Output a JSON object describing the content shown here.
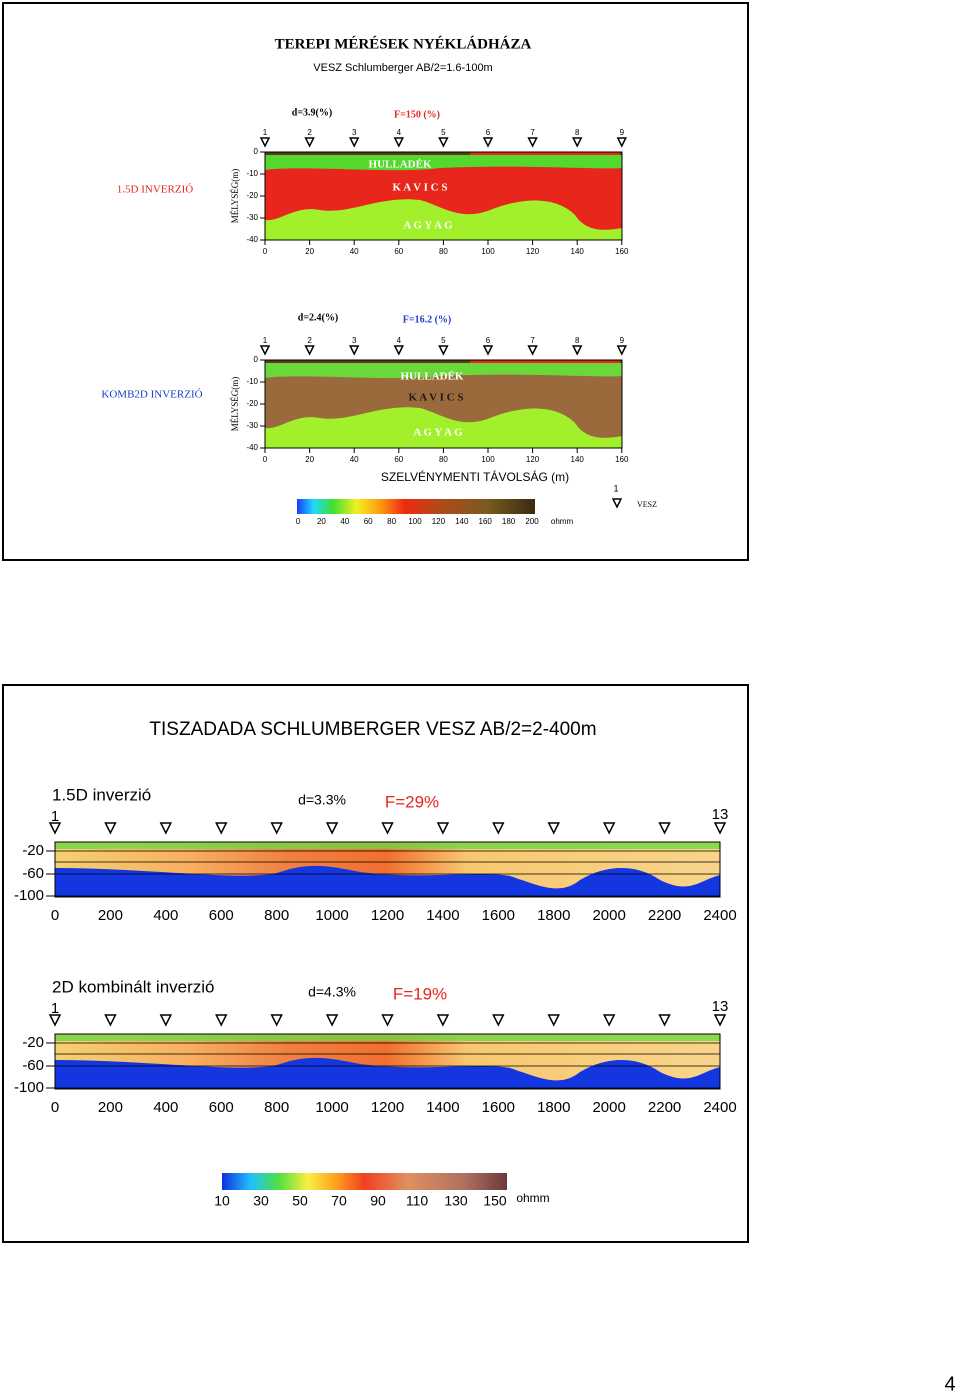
{
  "slides": [
    {
      "title": "TEREPI MÉRÉSEK NYÉKLÁDHÁZA",
      "subtitle": "VESZ Schlumberger AB/2=1.6-100m",
      "panels": [
        {
          "label": "1.5D INVERZIÓ",
          "d": "d=3.9(%)",
          "f": "F=150 (%)",
          "stations": [
            "1",
            "2",
            "3",
            "4",
            "5",
            "6",
            "7",
            "8",
            "9"
          ],
          "y_axis_title": "MÉLYSÉG(m)",
          "yticks": [
            "0",
            "-10",
            "-20",
            "-30",
            "-40"
          ],
          "xticks": [
            "0",
            "20",
            "40",
            "60",
            "80",
            "100",
            "120",
            "140",
            "160"
          ],
          "layers": [
            "HULLADÉK",
            "K A V I C S",
            "A G Y A G"
          ]
        },
        {
          "label": "KOMB2D INVERZIÓ",
          "d": "d=2.4(%)",
          "f": "F=16.2 (%)",
          "stations": [
            "1",
            "2",
            "3",
            "4",
            "5",
            "6",
            "7",
            "8",
            "9"
          ],
          "y_axis_title": "MÉLYSÉG(m)",
          "yticks": [
            "0",
            "-10",
            "-20",
            "-30",
            "-40"
          ],
          "xticks": [
            "0",
            "20",
            "40",
            "60",
            "80",
            "100",
            "120",
            "140",
            "160"
          ],
          "layers": [
            "HULLADÉK",
            "K A V I C S",
            "A G Y A G"
          ],
          "x_axis_title": "SZELVÉNYMENTI TÁVOLSÁG (m)"
        }
      ],
      "colorbar": {
        "ticks": [
          "0",
          "20",
          "40",
          "60",
          "80",
          "100",
          "120",
          "140",
          "160",
          "180",
          "200"
        ],
        "unit": "ohmm"
      },
      "legend": {
        "symbol_label": "1",
        "label": "VESZ"
      }
    },
    {
      "title": "TISZADADA SCHLUMBERGER VESZ AB/2=2-400m",
      "panels": [
        {
          "label": "1.5D inverzió",
          "d": "d=3.3%",
          "f": "F=29%",
          "first_station": "1",
          "last_station": "13",
          "yticks": [
            "-20",
            "-60",
            "-100"
          ],
          "xticks": [
            "0",
            "200",
            "400",
            "600",
            "800",
            "1000",
            "1200",
            "1400",
            "1600",
            "1800",
            "2000",
            "2200",
            "2400"
          ]
        },
        {
          "label": "2D kombinált inverzió",
          "d": "d=4.3%",
          "f": "F=19%",
          "first_station": "1",
          "last_station": "13",
          "yticks": [
            "-20",
            "-60",
            "-100"
          ],
          "xticks": [
            "0",
            "200",
            "400",
            "600",
            "800",
            "1000",
            "1200",
            "1400",
            "1600",
            "1800",
            "2000",
            "2200",
            "2400"
          ]
        }
      ],
      "colorbar": {
        "ticks": [
          "10",
          "30",
          "50",
          "70",
          "90",
          "110",
          "130",
          "150"
        ],
        "unit": "ohmm"
      }
    }
  ],
  "page_number": "4"
}
